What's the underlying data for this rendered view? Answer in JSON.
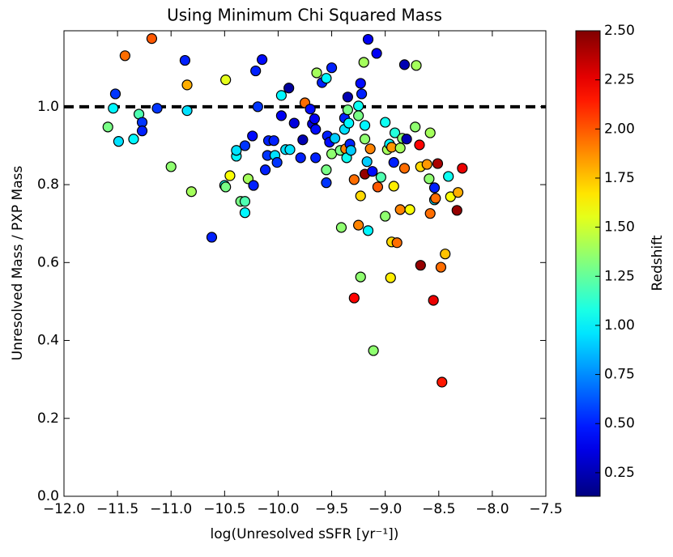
{
  "chart_data": {
    "type": "scatter",
    "title": "Using Minimum Chi Squared Mass",
    "x_label": "log(Unresolved sSFR [yr⁻¹])",
    "y_label": "Unresolved Mass / PXP Mass",
    "colorbar_label": "Redshift",
    "x": [
      -11.18,
      -11.43,
      -10.87,
      -10.15,
      -10.21,
      -11.52,
      -10.49,
      -10.85,
      -11.54,
      -11.13,
      -10.85,
      -11.3,
      -11.27,
      -11.27,
      -11.59,
      -11.35,
      -11.49,
      -11.0,
      -10.81,
      -10.62,
      -10.5,
      -10.49,
      -10.45,
      -10.39,
      -10.39,
      -10.31,
      -10.35,
      -10.31,
      -10.31,
      -10.28,
      -10.23,
      -10.24,
      -10.19,
      -10.12,
      -10.1,
      -10.09,
      -10.04,
      -10.03,
      -10.01,
      -9.97,
      -9.97,
      -9.93,
      -9.89,
      -9.9,
      -9.85,
      -9.79,
      -9.75,
      -9.77,
      -9.7,
      -9.68,
      -9.66,
      -9.65,
      -9.65,
      -9.64,
      -9.59,
      -9.55,
      -9.54,
      -9.55,
      -9.55,
      -9.5,
      -9.52,
      -9.5,
      -9.47,
      -9.42,
      -9.41,
      -9.38,
      -9.38,
      -9.37,
      -9.36,
      -9.35,
      -9.35,
      -9.34,
      -9.33,
      -9.32,
      -9.29,
      -9.29,
      -9.25,
      -9.25,
      -9.23,
      -9.23,
      -9.23,
      -9.25,
      -9.22,
      -9.19,
      -9.19,
      -9.17,
      -9.19,
      -9.2,
      -9.16,
      -9.16,
      -9.14,
      -9.12,
      -9.11,
      -9.08,
      -9.07,
      -9.04,
      -9.0,
      -9.0,
      -8.98,
      -8.96,
      -8.94,
      -8.95,
      -8.94,
      -8.91,
      -8.92,
      -8.92,
      -8.89,
      -8.86,
      -8.86,
      -8.84,
      -8.82,
      -8.82,
      -8.8,
      -8.77,
      -8.72,
      -8.71,
      -8.68,
      -8.67,
      -8.67,
      -8.61,
      -8.59,
      -8.58,
      -8.58,
      -8.54,
      -8.54,
      -8.55,
      -8.51,
      -8.53,
      -8.48,
      -8.47,
      -8.44,
      -8.41,
      -8.39,
      -8.32,
      -8.33,
      -8.28
    ],
    "values": [
      1.175,
      1.131,
      1.119,
      1.121,
      1.092,
      1.033,
      1.069,
      1.056,
      0.996,
      0.996,
      0.99,
      0.981,
      0.96,
      0.938,
      0.948,
      0.917,
      0.911,
      0.846,
      0.782,
      0.665,
      0.798,
      0.794,
      0.823,
      0.873,
      0.888,
      0.9,
      0.757,
      0.757,
      0.728,
      0.815,
      0.798,
      0.925,
      1.0,
      0.838,
      0.875,
      0.913,
      0.913,
      0.875,
      0.857,
      1.029,
      0.977,
      0.89,
      0.89,
      1.048,
      0.958,
      0.869,
      1.01,
      0.915,
      0.994,
      0.956,
      0.969,
      0.942,
      0.869,
      1.087,
      1.062,
      1.073,
      0.925,
      0.838,
      0.805,
      1.1,
      0.909,
      0.879,
      0.919,
      0.888,
      0.69,
      0.942,
      0.971,
      0.892,
      0.869,
      1.025,
      0.992,
      0.958,
      0.904,
      0.888,
      0.813,
      0.509,
      1.002,
      0.977,
      1.06,
      0.771,
      0.563,
      0.696,
      1.033,
      0.952,
      0.827,
      0.859,
      0.917,
      1.114,
      1.173,
      0.682,
      0.892,
      0.834,
      0.374,
      1.137,
      0.794,
      0.819,
      0.96,
      0.719,
      0.89,
      0.904,
      0.896,
      0.561,
      0.653,
      0.933,
      0.796,
      0.857,
      0.651,
      0.894,
      0.736,
      0.919,
      0.842,
      1.108,
      0.917,
      0.736,
      0.948,
      1.106,
      0.902,
      0.846,
      0.593,
      0.852,
      0.815,
      0.933,
      0.726,
      0.761,
      0.792,
      0.503,
      0.854,
      0.765,
      0.588,
      0.293,
      0.622,
      0.821,
      0.769,
      0.78,
      0.734,
      0.842
    ],
    "redshift": [
      2.0,
      1.95,
      0.5,
      0.45,
      0.5,
      0.55,
      1.55,
      1.8,
      1.0,
      0.55,
      0.95,
      1.2,
      0.55,
      0.5,
      1.3,
      1.0,
      0.95,
      1.35,
      1.4,
      0.5,
      1.05,
      1.3,
      1.6,
      1.0,
      0.95,
      0.55,
      1.3,
      1.2,
      1.0,
      1.4,
      0.5,
      0.45,
      0.55,
      0.5,
      0.55,
      0.5,
      0.5,
      0.95,
      0.55,
      1.0,
      0.4,
      0.95,
      0.95,
      0.2,
      0.35,
      0.5,
      1.95,
      0.25,
      0.45,
      0.35,
      0.4,
      0.45,
      0.5,
      1.4,
      0.5,
      1.0,
      0.5,
      1.3,
      0.55,
      0.5,
      0.45,
      1.35,
      0.9,
      1.3,
      1.35,
      0.95,
      0.5,
      1.9,
      1.05,
      0.25,
      1.3,
      1.0,
      0.5,
      0.9,
      1.95,
      2.2,
      1.05,
      1.3,
      0.45,
      1.7,
      1.35,
      1.9,
      0.5,
      1.0,
      2.45,
      0.9,
      1.35,
      1.4,
      0.4,
      1.0,
      1.9,
      0.45,
      1.35,
      0.4,
      2.0,
      1.2,
      1.05,
      1.35,
      1.4,
      1.0,
      1.85,
      1.65,
      1.7,
      1.1,
      1.65,
      0.5,
      1.95,
      1.4,
      1.9,
      1.35,
      1.95,
      0.25,
      0.25,
      1.6,
      1.35,
      1.4,
      2.2,
      1.7,
      2.45,
      1.85,
      1.35,
      1.4,
      1.95,
      0.95,
      0.5,
      2.25,
      2.4,
      1.95,
      1.95,
      2.15,
      1.75,
      1.05,
      1.6,
      1.8,
      2.45,
      2.25
    ],
    "reference_line": 1,
    "xlim": [
      -12,
      -7.5
    ],
    "xticks": [
      {
        "value": -12,
        "label": "−12.0"
      },
      {
        "value": -11.5,
        "label": "−11.5"
      },
      {
        "value": -11,
        "label": "−11.0"
      },
      {
        "value": -10.5,
        "label": "−10.5"
      },
      {
        "value": -10,
        "label": "−10.0"
      },
      {
        "value": -9.5,
        "label": "−9.5"
      },
      {
        "value": -9,
        "label": "−9.0"
      },
      {
        "value": -8.5,
        "label": "−8.5"
      },
      {
        "value": -8,
        "label": "−8.0"
      },
      {
        "value": -7.5,
        "label": "−7.5"
      }
    ],
    "ylim": [
      0,
      1.195
    ],
    "yticks": [
      {
        "value": 0,
        "label": "0.0"
      },
      0.2,
      0.4,
      0.6,
      0.8,
      {
        "value": 1,
        "label": "1.0"
      }
    ],
    "clim": [
      0.13,
      2.5
    ],
    "cticks": [
      0.25,
      {
        "value": 0.5,
        "label": "0.50"
      },
      0.75,
      {
        "value": 1,
        "label": "1.00"
      },
      1.25,
      {
        "value": 1.5,
        "label": "1.50"
      },
      1.75,
      {
        "value": 2,
        "label": "2.00"
      },
      2.25,
      {
        "value": 2.5,
        "label": "2.50"
      }
    ],
    "colormap": "jet"
  }
}
